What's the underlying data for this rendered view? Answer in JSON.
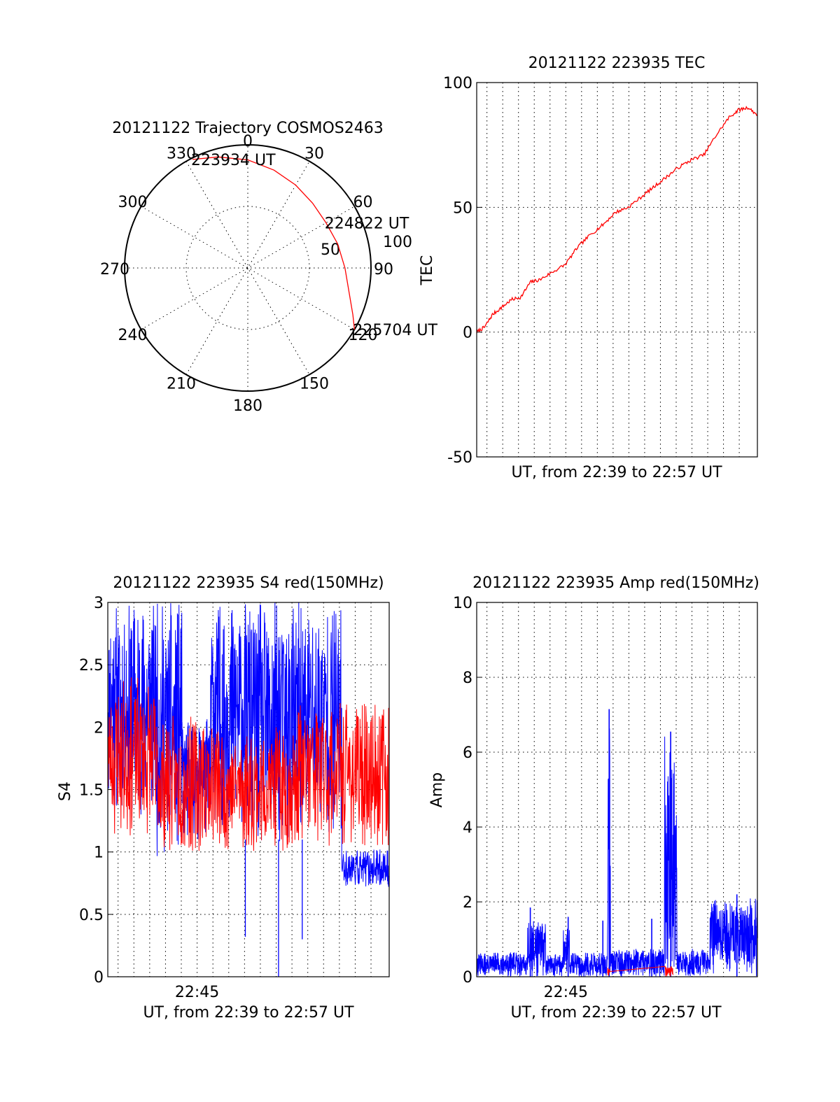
{
  "colors": {
    "red": "#ff0000",
    "blue": "#0000ff",
    "axes": "#000000",
    "background": "#ffffff"
  },
  "chart_data": [
    {
      "type": "polar",
      "title": "20121122 Trajectory COSMOS2463",
      "angle_labels": [
        "0",
        "30",
        "60",
        "90",
        "120",
        "150",
        "180",
        "210",
        "240",
        "270",
        "300",
        "330"
      ],
      "radius_labels": [
        "50",
        "100"
      ],
      "grid": true,
      "series": [
        {
          "color": "red",
          "points_az_zd": [
            [
              333,
              89
            ],
            [
              345,
              84
            ],
            [
              0,
              79
            ],
            [
              15,
              74
            ],
            [
              30,
              70
            ],
            [
              45,
              67
            ],
            [
              60,
              66
            ],
            [
              75,
              68
            ],
            [
              90,
              71
            ],
            [
              105,
              77
            ],
            [
              114,
              84
            ],
            [
              120,
              90
            ]
          ]
        }
      ],
      "annotations": [
        {
          "text": "223934 UT",
          "az": 333,
          "zd": 89
        },
        {
          "text": "224822 UT",
          "az": 60,
          "zd": 66
        },
        {
          "text": "225704 UT",
          "az": 120,
          "zd": 90
        }
      ]
    },
    {
      "type": "line",
      "title": "20121122 223935 TEC",
      "xlabel": "UT, from 22:39 to 22:57 UT",
      "ylabel": "TEC",
      "ylim": [
        -50,
        100
      ],
      "yticks": [
        "-50",
        "0",
        "50",
        "100"
      ],
      "xlim_min": [
        0,
        17.8
      ],
      "grid": true,
      "series": [
        {
          "color": "red",
          "x_min": [
            0,
            0.5,
            1.0,
            1.6,
            2.2,
            2.8,
            3.4,
            4.0,
            4.8,
            5.6,
            6.4,
            7.2,
            8.0,
            8.8,
            9.6,
            10.4,
            11.2,
            12.0,
            12.8,
            13.6,
            14.4,
            15.2,
            16.0,
            16.6,
            17.2,
            17.8
          ],
          "values": [
            0,
            2,
            7,
            10,
            13,
            14,
            20,
            21,
            24,
            27,
            34,
            39,
            43,
            48,
            50,
            54,
            58,
            62,
            66,
            69,
            71,
            79,
            86,
            89,
            90,
            87
          ]
        }
      ]
    },
    {
      "type": "line",
      "title": "20121122 223935 S4 red(150MHz)",
      "xlabel": "UT, from 22:39 to 22:57 UT",
      "ylabel": "S4",
      "ylim": [
        0,
        3
      ],
      "yticks": [
        "0",
        "0.5",
        "1",
        "1.5",
        "2",
        "2.5",
        "3"
      ],
      "xtick_label": "22:45",
      "xtick_at_min": 6,
      "xlim_min": [
        0,
        17.8
      ],
      "grid": true,
      "series": [
        {
          "color": "blue",
          "segments": [
            {
              "x_from": 0.0,
              "x_to": 0.4,
              "min": 1.4,
              "max": 3.0
            },
            {
              "x_from": 0.4,
              "x_to": 3.0,
              "min": 1.3,
              "max": 3.0
            },
            {
              "x_from": 3.0,
              "x_to": 4.7,
              "min": 0.95,
              "max": 3.0
            },
            {
              "x_from": 4.7,
              "x_to": 6.5,
              "min": 1.1,
              "max": 2.1
            },
            {
              "x_from": 6.5,
              "x_to": 9.0,
              "min": 1.2,
              "max": 3.0
            },
            {
              "x_from": 9.0,
              "x_to": 10.4,
              "min": 1.0,
              "max": 3.0
            },
            {
              "x_from": 10.4,
              "x_to": 12.5,
              "min": 1.0,
              "max": 3.0
            },
            {
              "x_from": 12.5,
              "x_to": 14.8,
              "min": 1.1,
              "max": 3.0
            },
            {
              "x_from": 14.8,
              "x_to": 17.8,
              "min": 0.72,
              "max": 1.02
            }
          ],
          "dips": [
            {
              "x": 8.7,
              "value": 0.32
            },
            {
              "x": 10.8,
              "value": 0.0
            },
            {
              "x": 12.3,
              "value": 0.3
            }
          ]
        },
        {
          "color": "red",
          "segments": [
            {
              "x_from": 0.0,
              "x_to": 3.0,
              "min": 1.1,
              "max": 2.4
            },
            {
              "x_from": 3.0,
              "x_to": 7.0,
              "min": 1.0,
              "max": 2.1
            },
            {
              "x_from": 7.0,
              "x_to": 12.0,
              "min": 1.0,
              "max": 2.0
            },
            {
              "x_from": 12.0,
              "x_to": 17.8,
              "min": 1.05,
              "max": 2.2
            }
          ]
        }
      ]
    },
    {
      "type": "line",
      "title": "20121122 223935 Amp red(150MHz)",
      "xlabel": "UT, from 22:39 to 22:57 UT",
      "ylabel": "Amp",
      "ylim": [
        0,
        10
      ],
      "yticks": [
        "0",
        "2",
        "4",
        "6",
        "8",
        "10"
      ],
      "xtick_label": "22:45",
      "xtick_at_min": 6,
      "xlim_min": [
        0,
        17.8
      ],
      "grid": true,
      "series": [
        {
          "color": "blue",
          "segments": [
            {
              "x_from": 0.0,
              "x_to": 3.2,
              "min": 0.0,
              "max": 0.65
            },
            {
              "x_from": 3.2,
              "x_to": 4.4,
              "min": 0.0,
              "max": 1.5
            },
            {
              "x_from": 4.4,
              "x_to": 5.5,
              "min": 0.0,
              "max": 0.6
            },
            {
              "x_from": 5.5,
              "x_to": 5.9,
              "min": 0.0,
              "max": 1.4
            },
            {
              "x_from": 5.9,
              "x_to": 8.3,
              "min": 0.0,
              "max": 0.65
            },
            {
              "x_from": 8.3,
              "x_to": 8.5,
              "min": 0.0,
              "max": 7.2
            },
            {
              "x_from": 8.5,
              "x_to": 11.9,
              "min": 0.0,
              "max": 0.75
            },
            {
              "x_from": 11.9,
              "x_to": 12.7,
              "min": 0.0,
              "max": 6.5
            },
            {
              "x_from": 12.7,
              "x_to": 14.8,
              "min": 0.0,
              "max": 0.75
            },
            {
              "x_from": 14.8,
              "x_to": 17.8,
              "min": 0.0,
              "max": 2.1
            }
          ],
          "spikes": [
            {
              "x": 3.4,
              "value": 1.85
            },
            {
              "x": 5.8,
              "value": 1.6
            },
            {
              "x": 8.0,
              "value": 1.5
            },
            {
              "x": 8.4,
              "value": 7.15
            },
            {
              "x": 11.1,
              "value": 1.55
            },
            {
              "x": 12.3,
              "value": 6.55
            },
            {
              "x": 16.5,
              "value": 2.2
            }
          ]
        },
        {
          "color": "red",
          "segments": [
            {
              "x_from": 8.3,
              "x_to": 8.45,
              "min": 0.0,
              "max": 0.25
            },
            {
              "x_from": 11.95,
              "x_to": 12.45,
              "min": 0.0,
              "max": 0.28
            }
          ]
        }
      ]
    }
  ]
}
